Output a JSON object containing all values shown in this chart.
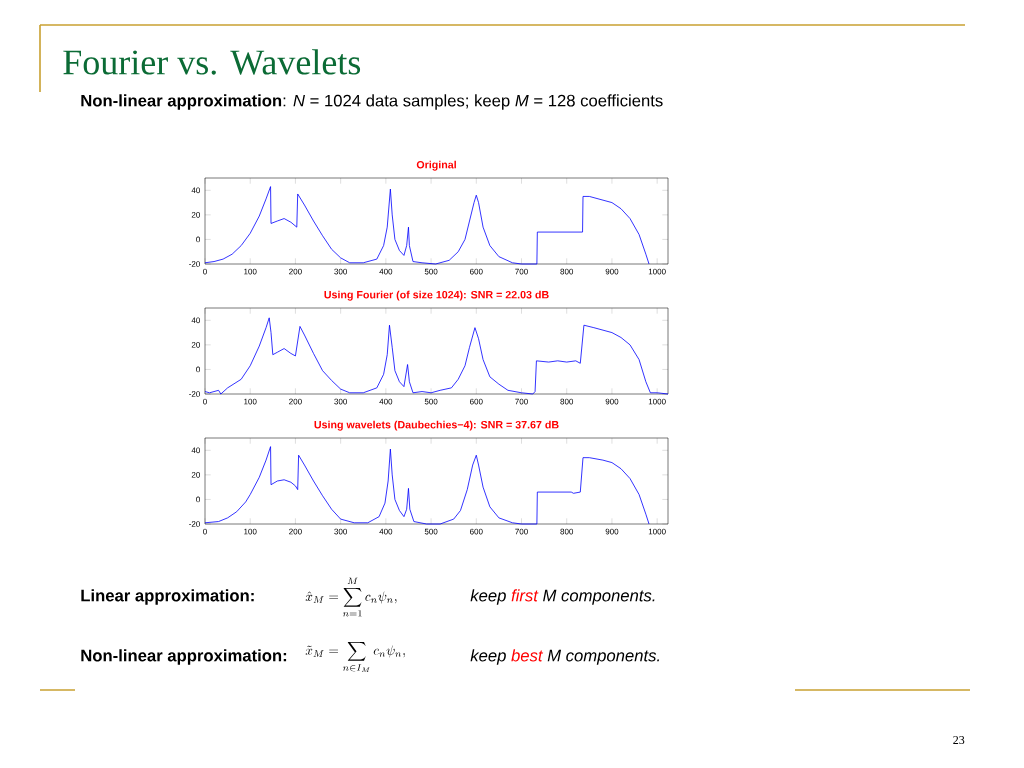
{
  "chart_data": [
    {
      "type": "line",
      "title": "Original",
      "xlim": [
        0,
        1024
      ],
      "ylim": [
        -20,
        50
      ],
      "xticks": [
        0,
        100,
        200,
        300,
        400,
        500,
        600,
        700,
        800,
        900,
        1000
      ],
      "yticks": [
        -20,
        0,
        20,
        40
      ],
      "series": [
        {
          "color": "#0000ff",
          "x": [
            0,
            20,
            40,
            60,
            80,
            100,
            120,
            135,
            145,
            146,
            160,
            175,
            190,
            203,
            205,
            220,
            240,
            260,
            280,
            300,
            320,
            350,
            380,
            395,
            403,
            410,
            414,
            420,
            430,
            440,
            446,
            450,
            452,
            460,
            480,
            510,
            540,
            560,
            575,
            585,
            595,
            600,
            605,
            615,
            630,
            650,
            680,
            700,
            734,
            735,
            835,
            836,
            850,
            880,
            900,
            920,
            940,
            960,
            975,
            982
          ],
          "values": [
            -19,
            -18,
            -16,
            -12,
            -5,
            5,
            19,
            33,
            43,
            13,
            15,
            17,
            14,
            10,
            37,
            28,
            15,
            3,
            -8,
            -15,
            -19,
            -19,
            -16,
            -5,
            10,
            41,
            20,
            0,
            -9,
            -13,
            -5,
            10,
            -5,
            -18,
            -19,
            -20,
            -17,
            -10,
            0,
            15,
            30,
            36,
            30,
            10,
            -5,
            -14,
            -19,
            -20,
            -20,
            6,
            6,
            35,
            35,
            32,
            30,
            25,
            17,
            4,
            -12,
            -20
          ]
        }
      ],
      "annotations": [
        "Fourier vs. Wavelets",
        "**Non-linear approximation**: *N* = 1024 data samples; keep *M* = 128 coefficients",
        "Linear approximation:",
        "\\hat{x}_M = \\sum_{n=1}^{M} c_n \\psi_n,",
        "keep",
        "first",
        "M components.",
        "Non-linear approximation:",
        "\\tilde{x}_M = \\sum_{n\\in I_M} c_n \\psi_n,",
        "keep",
        "best",
        "M components.",
        "23"
      ]
    },
    {
      "type": "line",
      "title": "Using Fourier (of size 1024): SNR = 22.03 dB",
      "xlim": [
        0,
        1024
      ],
      "ylim": [
        -20,
        50
      ],
      "xticks": [
        0,
        100,
        200,
        300,
        400,
        500,
        600,
        700,
        800,
        900,
        1000
      ],
      "yticks": [
        -20,
        0,
        20,
        40
      ],
      "series": [
        {
          "color": "#0000ff",
          "x": [
            0,
            10,
            30,
            35,
            50,
            80,
            100,
            120,
            135,
            142,
            146,
            150,
            160,
            175,
            190,
            200,
            210,
            220,
            240,
            260,
            280,
            300,
            320,
            350,
            380,
            395,
            403,
            408,
            414,
            420,
            430,
            440,
            448,
            452,
            460,
            480,
            500,
            520,
            545,
            560,
            575,
            585,
            597,
            605,
            615,
            630,
            650,
            670,
            700,
            725,
            730,
            733,
            760,
            780,
            800,
            820,
            830,
            838,
            860,
            880,
            900,
            920,
            940,
            960,
            975,
            985,
            1000,
            1024
          ],
          "values": [
            -18,
            -19,
            -17,
            -20,
            -15,
            -8,
            3,
            19,
            34,
            42,
            30,
            12,
            14,
            17,
            13,
            11,
            35,
            28,
            13,
            -1,
            -9,
            -16,
            -19,
            -19,
            -15,
            -4,
            12,
            36,
            18,
            -1,
            -10,
            -14,
            4,
            -10,
            -19,
            -18,
            -19,
            -17,
            -15,
            -8,
            3,
            18,
            34,
            25,
            8,
            -6,
            -12,
            -17,
            -19,
            -20,
            -18,
            7,
            6,
            7,
            6,
            7,
            5,
            36,
            34,
            32,
            30,
            26,
            20,
            8,
            -10,
            -19,
            -19,
            -20
          ]
        }
      ]
    },
    {
      "type": "line",
      "title": "Using wavelets (Daubechies−4): SNR = 37.67 dB",
      "xlim": [
        0,
        1024
      ],
      "ylim": [
        -20,
        50
      ],
      "xticks": [
        0,
        100,
        200,
        300,
        400,
        500,
        600,
        700,
        800,
        900,
        1000
      ],
      "yticks": [
        -20,
        0,
        20,
        40
      ],
      "series": [
        {
          "color": "#0000ff",
          "x": [
            0,
            30,
            50,
            70,
            90,
            100,
            120,
            135,
            145,
            146,
            160,
            175,
            190,
            200,
            205,
            207,
            220,
            240,
            260,
            280,
            300,
            330,
            360,
            385,
            398,
            405,
            410,
            414,
            420,
            430,
            440,
            446,
            450,
            453,
            462,
            490,
            520,
            550,
            565,
            580,
            592,
            600,
            605,
            615,
            630,
            650,
            680,
            700,
            734,
            735,
            810,
            815,
            830,
            836,
            850,
            880,
            900,
            920,
            940,
            960,
            975,
            982
          ],
          "values": [
            -19,
            -18,
            -15,
            -10,
            -2,
            4,
            18,
            32,
            43,
            12,
            15,
            16,
            14,
            11,
            8,
            36,
            28,
            15,
            3,
            -8,
            -16,
            -19,
            -19,
            -14,
            -3,
            15,
            41,
            20,
            0,
            -9,
            -14,
            -8,
            9,
            -8,
            -18,
            -20,
            -20,
            -16,
            -9,
            8,
            28,
            36,
            28,
            10,
            -6,
            -15,
            -19,
            -20,
            -20,
            6,
            6,
            5,
            6,
            34,
            34,
            32,
            30,
            25,
            17,
            4,
            -12,
            -20
          ]
        }
      ]
    }
  ]
}
